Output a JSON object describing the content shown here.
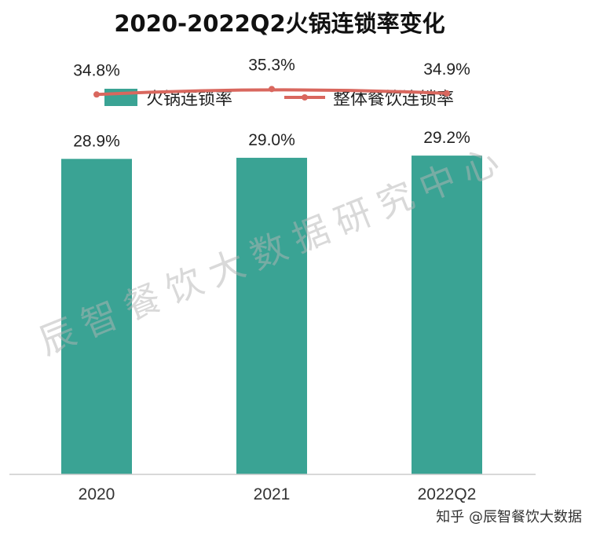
{
  "chart_data": {
    "type": "bar",
    "title": "2020-2022Q2火锅连锁率变化",
    "categories": [
      "2020",
      "2021",
      "2022Q2"
    ],
    "ylim": [
      0,
      40
    ],
    "grid": false,
    "legend_position": "top-center",
    "series": [
      {
        "name": "火锅连锁率",
        "type": "bar",
        "color": "#3aa394",
        "values": [
          28.9,
          29.0,
          29.2
        ],
        "labels": [
          "28.9%",
          "29.0%",
          "29.2%"
        ]
      },
      {
        "name": "整体餐饮连锁率",
        "type": "line",
        "color": "#d9675e",
        "values": [
          34.8,
          35.3,
          34.9
        ],
        "labels": [
          "34.8%",
          "35.3%",
          "34.9%"
        ]
      }
    ]
  },
  "watermark": "辰智餐饮大数据研究中心",
  "credit": "知乎 @辰智餐饮大数据"
}
